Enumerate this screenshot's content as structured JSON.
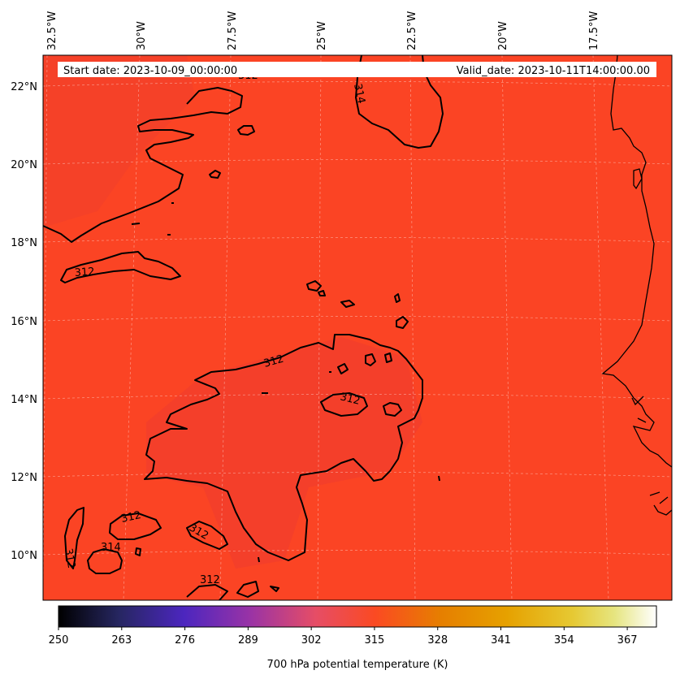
{
  "header": {
    "start_date": "Start date: 2023-10-09_00:00:00",
    "valid_date": "Valid_date: 2023-10-11T14:00:00.00"
  },
  "axes": {
    "lon_labels": [
      "32.5°W",
      "30°W",
      "27.5°W",
      "25°W",
      "22.5°W",
      "20°W",
      "17.5°W"
    ],
    "lat_labels": [
      "22°N",
      "20°N",
      "18°N",
      "16°N",
      "14°N",
      "12°N",
      "10°N"
    ]
  },
  "field": {
    "variable": "700 hPa potential temperature (K)",
    "background_color": "#fb4424",
    "contour_labels": [
      "312",
      "314",
      "312",
      "312",
      "312",
      "312",
      "314",
      "312",
      "312",
      "312",
      "312"
    ]
  },
  "colorbar": {
    "label": "700 hPa potential temperature (K)",
    "ticks": [
      "250",
      "263",
      "276",
      "289",
      "302",
      "315",
      "328",
      "341",
      "354",
      "367"
    ],
    "min": 250,
    "max": 373,
    "colormap": "CMRmap",
    "colors": [
      "#000000",
      "#262660",
      "#4c26bf",
      "#9933a6",
      "#e64d66",
      "#fb4a22",
      "#e67f00",
      "#e6a100",
      "#e6c933",
      "#e6e580",
      "#ffffff"
    ]
  }
}
